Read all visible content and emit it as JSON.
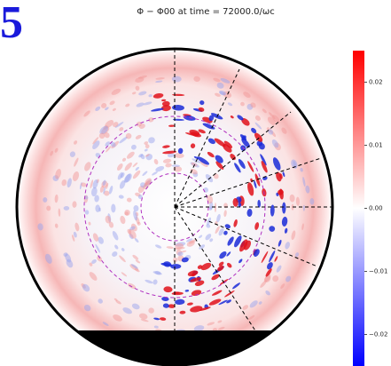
{
  "chart_data": {
    "type": "polar-field",
    "panel_label": "5",
    "title": "Φ − Φ00 at time = 72000.0/ωc",
    "colorbar": {
      "clim": [
        -0.025,
        0.025
      ],
      "ticks": [
        {
          "value": 0.02,
          "label": "0.02"
        },
        {
          "value": 0.01,
          "label": "0.01"
        },
        {
          "value": 0,
          "label": "0.00"
        },
        {
          "value": -0.01,
          "label": "−0.01"
        },
        {
          "value": -0.02,
          "label": "−0.02"
        }
      ],
      "colors": [
        "#0000ff",
        "#ffffff",
        "#ff0000"
      ]
    }
  }
}
